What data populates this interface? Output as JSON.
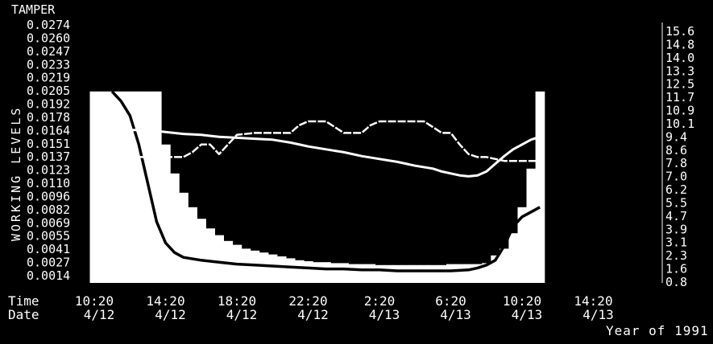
{
  "chart_data": {
    "type": "bar",
    "tamper_label": "TAMPER",
    "ylabel": "WORKING LEVELS",
    "y_left_ticks": [
      "0.0274",
      "0.0260",
      "0.0247",
      "0.0233",
      "0.0219",
      "0.0205",
      "0.0192",
      "0.0178",
      "0.0164",
      "0.0151",
      "0.0137",
      "0.0123",
      "0.0110",
      "0.0096",
      "0.0082",
      "0.0069",
      "0.0055",
      "0.0041",
      "0.0027",
      "0.0014"
    ],
    "y_right_ticks": [
      "15.6",
      "14.8",
      "14.0",
      "13.3",
      "12.5",
      "11.7",
      "10.9",
      "10.1",
      "9.4",
      "8.6",
      "7.8",
      "7.0",
      "6.2",
      "5.5",
      "4.7",
      "3.9",
      "3.1",
      "2.3",
      "1.6",
      "0.8"
    ],
    "ylim": [
      0,
      0.0274
    ],
    "x_row_labels": [
      "Time",
      "Date"
    ],
    "x_ticks": [
      {
        "time": "10:20",
        "date": "4/12"
      },
      {
        "time": "14:20",
        "date": "4/12"
      },
      {
        "time": "18:20",
        "date": "4/12"
      },
      {
        "time": "22:20",
        "date": "4/12"
      },
      {
        "time": "2:20",
        "date": "4/13"
      },
      {
        "time": "6:20",
        "date": "4/13"
      },
      {
        "time": "10:20",
        "date": "4/13"
      },
      {
        "time": "14:20",
        "date": "4/13"
      }
    ],
    "year_label": "Year of 1991",
    "bar_hours": [
      0,
      0.5,
      1,
      1.5,
      2,
      2.5,
      3,
      3.5,
      4,
      4.5,
      5,
      5.5,
      6,
      6.5,
      7,
      7.5,
      8,
      8.5,
      9,
      9.5,
      10,
      10.5,
      11,
      11.5,
      12,
      12.5,
      13,
      13.5,
      14,
      14.5,
      15,
      15.5,
      16,
      16.5,
      17,
      17.5,
      18,
      18.5,
      19,
      19.5,
      20,
      20.5,
      21,
      21.5,
      22,
      22.5,
      23,
      23.5,
      24,
      24.5,
      25
    ],
    "bar_values": [
      0.0205,
      0.0205,
      0.0205,
      0.0205,
      0.0205,
      0.0205,
      0.0205,
      0.0205,
      0.015,
      0.012,
      0.01,
      0.0085,
      0.0073,
      0.0063,
      0.0056,
      0.005,
      0.0046,
      0.0042,
      0.004,
      0.0038,
      0.0036,
      0.0034,
      0.0032,
      0.003,
      0.0029,
      0.0028,
      0.0028,
      0.0027,
      0.0027,
      0.0026,
      0.0026,
      0.0026,
      0.0025,
      0.0025,
      0.0025,
      0.0025,
      0.0025,
      0.0025,
      0.0025,
      0.0025,
      0.0026,
      0.0026,
      0.0026,
      0.0026,
      0.0027,
      0.0035,
      0.0042,
      0.0058,
      0.0085,
      0.0125,
      0.0205
    ],
    "series": [
      {
        "hours": [
          1.0,
          1.5,
          2.0,
          2.5,
          3.0,
          3.5,
          4.0,
          4.5,
          5.0,
          6.0,
          7.0,
          8.0,
          9.0,
          10.0,
          11.0,
          12.0,
          13.0,
          14.0,
          15.0,
          16.0,
          17.0,
          18.0,
          19.0,
          20.0,
          21.0,
          21.5,
          22.0,
          22.5,
          23.0,
          23.5,
          24.0,
          24.5,
          25.0
        ],
        "values": [
          0.0205,
          0.0195,
          0.018,
          0.015,
          0.011,
          0.007,
          0.0048,
          0.0038,
          0.0033,
          0.003,
          0.0028,
          0.0026,
          0.0025,
          0.0024,
          0.0023,
          0.0022,
          0.0021,
          0.0021,
          0.002,
          0.002,
          0.0019,
          0.0019,
          0.0019,
          0.0019,
          0.002,
          0.0022,
          0.0025,
          0.003,
          0.0045,
          0.0065,
          0.0075,
          0.008,
          0.0085
        ]
      },
      {
        "hours": [
          2.0,
          3.0,
          4.0,
          5.0,
          6.0,
          7.0,
          8.0,
          9.0,
          10.0,
          11.0,
          12.0,
          13.0,
          14.0,
          15.0,
          16.0,
          17.0,
          18.0,
          19.0,
          19.5,
          20.0,
          20.5,
          21.0,
          21.5,
          22.0,
          22.5,
          23.0,
          23.5,
          24.0,
          24.5,
          25.0
        ],
        "values": [
          0.0165,
          0.0165,
          0.0163,
          0.0161,
          0.016,
          0.0158,
          0.0157,
          0.0156,
          0.0155,
          0.0152,
          0.0148,
          0.0145,
          0.0142,
          0.0138,
          0.0135,
          0.0132,
          0.0128,
          0.0125,
          0.0122,
          0.012,
          0.0118,
          0.0117,
          0.0118,
          0.0122,
          0.013,
          0.0138,
          0.0145,
          0.015,
          0.0155,
          0.0158
        ]
      },
      {
        "hours": [
          1.0,
          1.5,
          2.0,
          3.0,
          4.0,
          5.0,
          5.5,
          6.0,
          6.5,
          7.0,
          7.5,
          8.0,
          9.0,
          10.0,
          11.0,
          11.5,
          12.0,
          13.0,
          14.0,
          15.0,
          15.5,
          16.0,
          17.0,
          18.0,
          18.5,
          19.0,
          19.5,
          20.0,
          20.5,
          21.0,
          21.5,
          22.0,
          22.5,
          23.0,
          23.5,
          24.0,
          24.5,
          25.0
        ],
        "values": [
          0.0125,
          0.0137,
          0.0137,
          0.0137,
          0.0137,
          0.0137,
          0.0142,
          0.015,
          0.015,
          0.014,
          0.015,
          0.016,
          0.0162,
          0.0162,
          0.0162,
          0.017,
          0.0174,
          0.0174,
          0.0162,
          0.0162,
          0.017,
          0.0174,
          0.0174,
          0.0174,
          0.0174,
          0.0168,
          0.0162,
          0.0162,
          0.015,
          0.014,
          0.0137,
          0.0137,
          0.0135,
          0.0133,
          0.0133,
          0.0133,
          0.0133,
          0.0133
        ]
      }
    ],
    "x_range_hours": [
      0,
      25
    ],
    "tick_hours": [
      0,
      4,
      8,
      12,
      16,
      20,
      24,
      28
    ]
  }
}
